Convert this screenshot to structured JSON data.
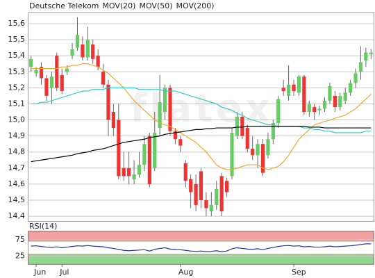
{
  "chart_data": [
    {
      "type": "candlestick",
      "name": "Deutsche Telekom",
      "name_color": "#ee3333",
      "up_color": "#66cc66",
      "down_color": "#ee3333",
      "wick_color": "#666666",
      "watermark": "flatex",
      "open": [
        15.33,
        15.29,
        15.33,
        15.26,
        15.2,
        15.4,
        15.28,
        15.3,
        15.4,
        15.45,
        15.47,
        15.39,
        15.47,
        15.4,
        15.3,
        15.22,
        15.05,
        15.0,
        14.7,
        14.7,
        14.63,
        14.66,
        14.72,
        14.9,
        14.7,
        14.95,
        15.05,
        15.2,
        14.93,
        14.88,
        14.73,
        14.63,
        14.6,
        14.68,
        14.5,
        14.43,
        14.47,
        14.65,
        14.62,
        14.65,
        14.9,
        15.02,
        14.95,
        14.82,
        14.78,
        14.85,
        14.78,
        14.88,
        14.98,
        15.2,
        15.15,
        15.22,
        15.17,
        15.27,
        15.05,
        15.08,
        15.06,
        15.07,
        15.12,
        15.15,
        15.08,
        15.12,
        15.17,
        15.23,
        15.3,
        15.37,
        15.41
      ],
      "high": [
        15.4,
        15.33,
        15.36,
        15.28,
        15.3,
        15.42,
        15.32,
        15.34,
        15.48,
        15.64,
        15.52,
        15.58,
        15.5,
        15.44,
        15.35,
        15.25,
        15.1,
        15.1,
        14.8,
        14.8,
        14.75,
        14.8,
        14.9,
        14.92,
        15.05,
        15.28,
        15.22,
        15.22,
        14.95,
        14.9,
        14.75,
        14.66,
        14.66,
        14.7,
        14.55,
        14.55,
        14.62,
        14.67,
        14.64,
        14.95,
        15.05,
        15.05,
        14.97,
        14.9,
        14.88,
        14.88,
        14.92,
        15.0,
        15.15,
        15.25,
        15.34,
        15.25,
        15.28,
        15.28,
        15.12,
        15.1,
        15.09,
        15.14,
        15.23,
        15.18,
        15.17,
        15.2,
        15.25,
        15.32,
        15.46,
        15.45,
        15.44
      ],
      "low": [
        15.3,
        15.27,
        15.22,
        15.12,
        15.1,
        15.18,
        15.16,
        15.28,
        15.38,
        15.43,
        15.37,
        15.37,
        15.35,
        15.31,
        15.2,
        14.9,
        14.9,
        14.63,
        14.62,
        14.6,
        14.6,
        14.64,
        14.68,
        14.58,
        14.68,
        14.9,
        15.0,
        14.9,
        14.85,
        14.8,
        14.58,
        14.45,
        14.43,
        14.45,
        14.4,
        14.4,
        14.44,
        14.4,
        14.52,
        14.63,
        14.88,
        14.88,
        14.8,
        14.75,
        14.7,
        14.65,
        14.76,
        14.85,
        14.95,
        15.15,
        15.12,
        15.15,
        15.15,
        15.03,
        15.02,
        15.0,
        15.03,
        15.05,
        15.1,
        15.05,
        15.06,
        15.1,
        15.15,
        15.2,
        15.25,
        15.33,
        15.38
      ],
      "close": [
        15.38,
        15.31,
        15.26,
        15.15,
        15.27,
        15.2,
        15.18,
        15.32,
        15.44,
        15.53,
        15.39,
        15.5,
        15.38,
        15.33,
        15.22,
        15.0,
        14.95,
        14.65,
        14.65,
        14.65,
        14.66,
        14.72,
        14.85,
        14.6,
        14.92,
        15.11,
        15.2,
        14.93,
        14.88,
        14.84,
        14.62,
        14.55,
        14.47,
        14.5,
        14.45,
        14.47,
        14.57,
        14.43,
        14.55,
        14.92,
        15.02,
        14.9,
        14.82,
        14.78,
        14.85,
        14.67,
        14.88,
        14.98,
        15.13,
        15.18,
        15.22,
        15.18,
        15.27,
        15.05,
        15.1,
        15.05,
        15.07,
        15.12,
        15.21,
        15.08,
        15.15,
        15.17,
        15.23,
        15.29,
        15.36,
        15.42,
        15.42
      ],
      "series": [
        {
          "name": "MOV(20)",
          "color": "#f0a830",
          "values": [
            15.32,
            15.32,
            15.32,
            15.32,
            15.32,
            15.32,
            15.33,
            15.33,
            15.34,
            15.34,
            15.35,
            15.35,
            15.34,
            15.33,
            15.31,
            15.29,
            15.26,
            15.23,
            15.2,
            15.16,
            15.12,
            15.09,
            15.06,
            15.03,
            15.0,
            14.98,
            14.97,
            14.96,
            14.94,
            14.92,
            14.9,
            14.88,
            14.86,
            14.83,
            14.8,
            14.76,
            14.72,
            14.7,
            14.69,
            14.69,
            14.7,
            14.71,
            14.72,
            14.72,
            14.72,
            14.7,
            14.69,
            14.7,
            14.71,
            14.74,
            14.78,
            14.83,
            14.88,
            14.91,
            14.94,
            14.97,
            14.98,
            14.99,
            15.0,
            15.01,
            15.02,
            15.03,
            15.05,
            15.07,
            15.1,
            15.13,
            15.16
          ]
        },
        {
          "name": "MOV(50)",
          "color": "#33cccc",
          "values": [
            15.1,
            15.1,
            15.11,
            15.11,
            15.12,
            15.13,
            15.14,
            15.15,
            15.16,
            15.17,
            15.18,
            15.18,
            15.19,
            15.19,
            15.19,
            15.2,
            15.2,
            15.2,
            15.2,
            15.2,
            15.2,
            15.19,
            15.19,
            15.19,
            15.19,
            15.19,
            15.18,
            15.18,
            15.18,
            15.17,
            15.16,
            15.15,
            15.14,
            15.13,
            15.12,
            15.11,
            15.1,
            15.08,
            15.07,
            15.06,
            15.04,
            15.03,
            15.01,
            15.0,
            14.99,
            14.98,
            14.97,
            14.97,
            14.96,
            14.96,
            14.96,
            14.96,
            14.96,
            14.95,
            14.95,
            14.94,
            14.94,
            14.93,
            14.93,
            14.92,
            14.92,
            14.92,
            14.92,
            14.92,
            14.92,
            14.93,
            14.93
          ]
        },
        {
          "name": "MOV(200)",
          "color": "#000000",
          "values": [
            14.74,
            14.745,
            14.75,
            14.755,
            14.76,
            14.765,
            14.77,
            14.775,
            14.78,
            14.79,
            14.795,
            14.8,
            14.81,
            14.815,
            14.82,
            14.83,
            14.84,
            14.85,
            14.86,
            14.865,
            14.87,
            14.875,
            14.88,
            14.89,
            14.895,
            14.9,
            14.91,
            14.915,
            14.92,
            14.925,
            14.93,
            14.935,
            14.94,
            14.94,
            14.945,
            14.945,
            14.95,
            14.95,
            14.95,
            14.95,
            14.955,
            14.955,
            14.96,
            14.96,
            14.96,
            14.96,
            14.96,
            14.96,
            14.96,
            14.96,
            14.96,
            14.96,
            14.96,
            14.96,
            14.955,
            14.955,
            14.955,
            14.95,
            14.95,
            14.95,
            14.95,
            14.95,
            14.95,
            14.95,
            14.95,
            14.95,
            14.95
          ]
        }
      ],
      "ylim": [
        14.37,
        15.665
      ],
      "yticks": [
        {
          "value": 14.4,
          "label": "14,4"
        },
        {
          "value": 14.5,
          "label": "14,5"
        },
        {
          "value": 14.6,
          "label": "14,6"
        },
        {
          "value": 14.7,
          "label": "14,7"
        },
        {
          "value": 14.8,
          "label": "14,8"
        },
        {
          "value": 14.9,
          "label": "14,9"
        },
        {
          "value": 15.0,
          "label": "15,0"
        },
        {
          "value": 15.1,
          "label": "15,1"
        },
        {
          "value": 15.2,
          "label": "15,2"
        },
        {
          "value": 15.3,
          "label": "15,3"
        },
        {
          "value": 15.4,
          "label": "15,4"
        },
        {
          "value": 15.5,
          "label": "15,5"
        },
        {
          "value": 15.6,
          "label": "15,6"
        }
      ],
      "grid": true
    },
    {
      "type": "line",
      "categories": [
        null,
        "Jun",
        null,
        null,
        null,
        null,
        "Jul",
        null,
        null,
        null,
        null,
        null,
        null,
        null,
        null,
        null,
        null,
        null,
        null,
        null,
        null,
        null,
        null,
        null,
        null,
        null,
        null,
        null,
        null,
        "Aug",
        null,
        null,
        null,
        null,
        null,
        null,
        null,
        null,
        null,
        null,
        null,
        null,
        null,
        null,
        null,
        null,
        null,
        null,
        null,
        null,
        null,
        "Sep",
        null,
        null,
        null,
        null,
        null,
        null,
        null,
        null,
        null,
        null,
        null,
        null,
        null,
        null,
        null
      ],
      "series": [
        {
          "name": "RSI(14)",
          "color": "#2233aa",
          "values": [
            55,
            56,
            54,
            52,
            51,
            53,
            50,
            52,
            54,
            56,
            55,
            57,
            55,
            54,
            53,
            50,
            48,
            45,
            42,
            41,
            42,
            43,
            44,
            40,
            45,
            48,
            50,
            46,
            45,
            44,
            42,
            40,
            39,
            40,
            38,
            39,
            41,
            38,
            40,
            47,
            50,
            48,
            46,
            45,
            47,
            44,
            48,
            51,
            54,
            56,
            57,
            55,
            56,
            53,
            54,
            52,
            52,
            53,
            55,
            53,
            54,
            55,
            56,
            58,
            60,
            62,
            62
          ]
        }
      ],
      "bands": [
        {
          "from": 70,
          "to": 100,
          "color": "#f4a0a0"
        },
        {
          "from": 0,
          "to": 30,
          "color": "#90d890"
        }
      ],
      "ylim": [
        0,
        100
      ],
      "yticks": [
        25,
        75
      ],
      "grid": true
    }
  ]
}
